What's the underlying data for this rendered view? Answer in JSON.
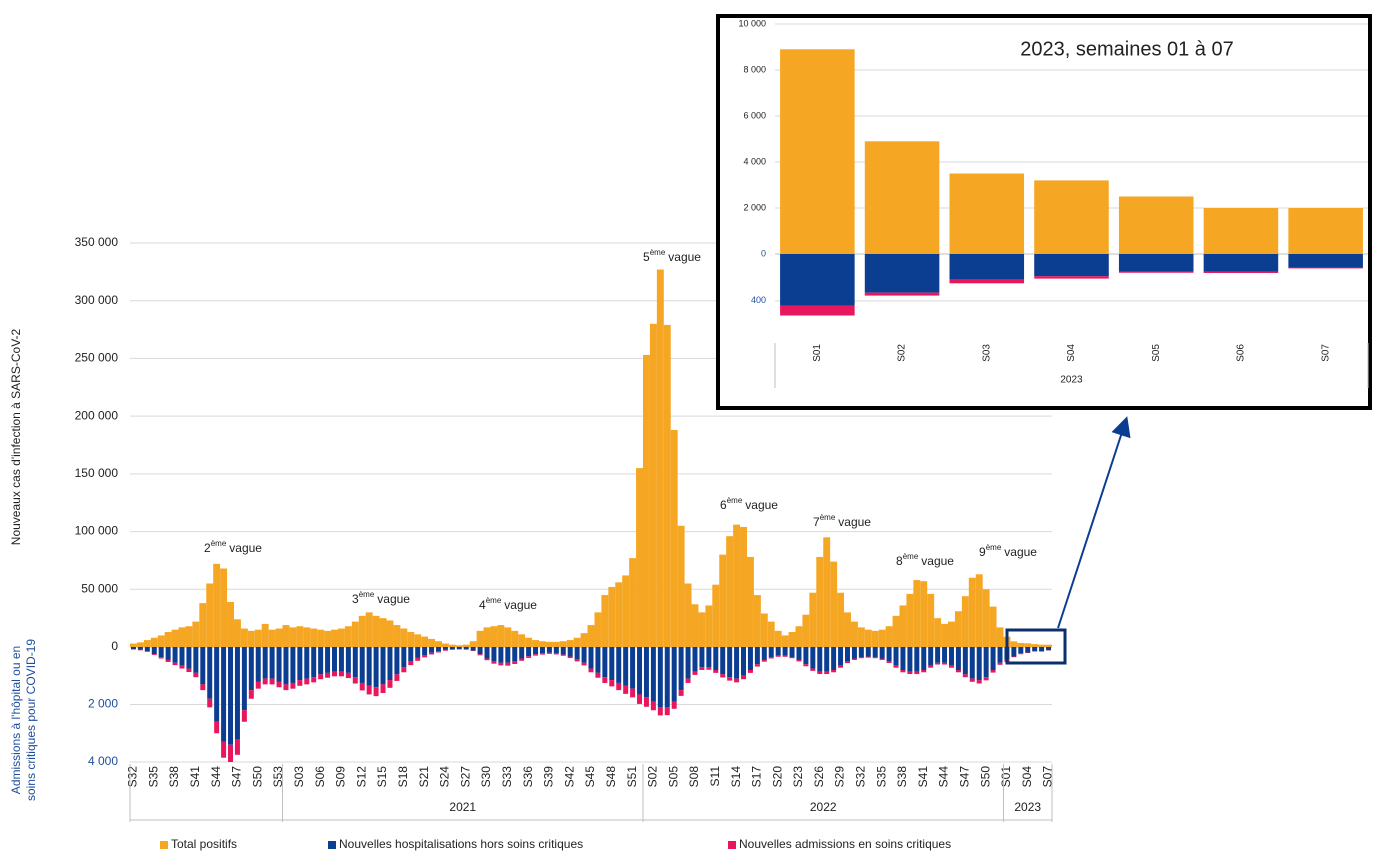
{
  "chart_data": [
    {
      "type": "bar",
      "ylabel": "Nouveaux cas d'infection à SARS-CoV-2",
      "y2label": [
        "Admissions à l'hôpital ou en",
        "soins critiques pour COVID-19"
      ],
      "categories": [
        "S32",
        null,
        null,
        "S35",
        null,
        null,
        "S38",
        null,
        null,
        "S41",
        null,
        null,
        "S44",
        null,
        null,
        "S47",
        null,
        null,
        "S50",
        null,
        null,
        "S53",
        null,
        null,
        "S03",
        null,
        null,
        "S06",
        null,
        null,
        "S09",
        null,
        null,
        "S12",
        null,
        null,
        "S15",
        null,
        null,
        "S18",
        null,
        null,
        "S21",
        null,
        null,
        "S24",
        null,
        null,
        "S27",
        null,
        null,
        "S30",
        null,
        null,
        "S33",
        null,
        null,
        "S36",
        null,
        null,
        "S39",
        null,
        null,
        "S42",
        null,
        null,
        "S45",
        null,
        null,
        "S48",
        null,
        null,
        "S51",
        null,
        null,
        "S02",
        null,
        null,
        "S05",
        null,
        null,
        "S08",
        null,
        null,
        "S11",
        null,
        null,
        "S14",
        null,
        null,
        "S17",
        null,
        null,
        "S20",
        null,
        null,
        "S23",
        null,
        null,
        "S26",
        null,
        null,
        "S29",
        null,
        null,
        "S32",
        null,
        null,
        "S35",
        null,
        null,
        "S38",
        null,
        null,
        "S41",
        null,
        null,
        "S44",
        null,
        null,
        "S47",
        null,
        null,
        "S50",
        null,
        null,
        "S01",
        null,
        null,
        "S04",
        null,
        null,
        "S07"
      ],
      "groups": [
        {
          "name": null,
          "size": 22
        },
        {
          "name": "2021",
          "size": 52
        },
        {
          "name": "2022",
          "size": 52
        },
        {
          "name": "2023",
          "size": 7
        }
      ],
      "series": [
        {
          "name": "Total positifs",
          "color": "#f5a623",
          "values": [
            3000,
            4000,
            6000,
            8000,
            10000,
            13000,
            15000,
            17000,
            18000,
            22000,
            38000,
            55000,
            72000,
            68000,
            39000,
            24000,
            16000,
            14000,
            15000,
            20000,
            15000,
            16000,
            19000,
            17000,
            18000,
            17000,
            16000,
            15000,
            14000,
            15000,
            16000,
            18000,
            22000,
            27000,
            30000,
            27000,
            25000,
            23000,
            19000,
            16000,
            13000,
            11000,
            9000,
            7000,
            5000,
            3000,
            2000,
            1500,
            2000,
            5000,
            14000,
            17000,
            18000,
            19000,
            17000,
            14000,
            11000,
            8000,
            6000,
            5000,
            4500,
            4500,
            5000,
            6000,
            8000,
            12000,
            19000,
            30000,
            45000,
            52000,
            56000,
            62000,
            77000,
            155000,
            253000,
            280000,
            327000,
            279000,
            188000,
            105000,
            55000,
            37000,
            30000,
            36000,
            54000,
            80000,
            96000,
            106000,
            104000,
            78000,
            45000,
            29000,
            22000,
            14000,
            10000,
            13000,
            18000,
            28000,
            47000,
            78000,
            95000,
            74000,
            47000,
            30000,
            22000,
            17000,
            15000,
            14000,
            15000,
            18000,
            27000,
            36000,
            46000,
            58000,
            57000,
            46000,
            25000,
            20000,
            22000,
            31000,
            44000,
            60000,
            63000,
            50000,
            35000,
            17000,
            8900,
            4900,
            3500,
            3200,
            2500,
            2000,
            2000
          ]
        },
        {
          "name": "Nouvelles hospitalisations hors soins critiques",
          "color": "#0b3d91",
          "axis": "y2",
          "values": [
            80,
            100,
            150,
            250,
            350,
            450,
            550,
            650,
            750,
            900,
            1300,
            1800,
            2600,
            3300,
            3400,
            3200,
            2200,
            1500,
            1200,
            1100,
            1100,
            1200,
            1300,
            1250,
            1150,
            1100,
            1050,
            950,
            900,
            850,
            850,
            900,
            1050,
            1250,
            1350,
            1400,
            1300,
            1150,
            950,
            700,
            500,
            380,
            280,
            200,
            150,
            100,
            80,
            70,
            80,
            120,
            250,
            400,
            500,
            550,
            550,
            500,
            400,
            320,
            250,
            220,
            200,
            220,
            260,
            330,
            430,
            550,
            750,
            900,
            1050,
            1150,
            1250,
            1350,
            1450,
            1650,
            1750,
            1900,
            2100,
            2100,
            1900,
            1500,
            1100,
            850,
            700,
            700,
            800,
            950,
            1050,
            1100,
            1000,
            800,
            600,
            450,
            350,
            300,
            300,
            350,
            450,
            600,
            750,
            850,
            850,
            800,
            650,
            500,
            400,
            350,
            330,
            350,
            400,
            500,
            650,
            800,
            850,
            850,
            800,
            650,
            550,
            550,
            650,
            800,
            950,
            1100,
            1150,
            1050,
            800,
            550,
            440,
            330,
            220,
            190,
            150,
            150,
            115
          ]
        },
        {
          "name": "Nouvelles admissions en soins critiques",
          "color": "#e8175d",
          "axis": "y2",
          "values": [
            10,
            15,
            20,
            30,
            50,
            70,
            80,
            100,
            120,
            150,
            200,
            300,
            400,
            550,
            600,
            550,
            400,
            300,
            250,
            200,
            200,
            200,
            200,
            200,
            200,
            200,
            180,
            170,
            170,
            170,
            170,
            180,
            220,
            260,
            300,
            310,
            300,
            270,
            230,
            180,
            130,
            100,
            80,
            60,
            40,
            30,
            20,
            15,
            15,
            20,
            40,
            60,
            80,
            90,
            100,
            90,
            80,
            60,
            50,
            45,
            40,
            40,
            45,
            55,
            70,
            90,
            130,
            170,
            200,
            220,
            250,
            280,
            300,
            330,
            330,
            300,
            280,
            270,
            250,
            200,
            150,
            120,
            100,
            90,
            100,
            110,
            120,
            130,
            120,
            100,
            80,
            60,
            50,
            40,
            40,
            40,
            50,
            70,
            80,
            90,
            90,
            80,
            70,
            60,
            50,
            40,
            40,
            40,
            50,
            55,
            70,
            80,
            90,
            90,
            80,
            70,
            60,
            60,
            70,
            80,
            100,
            110,
            120,
            110,
            90,
            70,
            85,
            25,
            30,
            20,
            10,
            12,
            8
          ]
        }
      ],
      "ylim": [
        0,
        350000
      ],
      "yticks": [
        0,
        {
          "value": 50000,
          "label": "50 000"
        },
        {
          "value": 100000,
          "label": "100 000"
        },
        {
          "value": 150000,
          "label": "150 000"
        },
        {
          "value": 200000,
          "label": "200 000"
        },
        {
          "value": 250000,
          "label": "250 000"
        },
        {
          "value": 300000,
          "label": "300 000"
        },
        {
          "value": 350000,
          "label": "350 000"
        }
      ],
      "y2lim": [
        0,
        4000
      ],
      "y2ticks": [
        {
          "value": 2000,
          "label": "2 000"
        },
        {
          "value": 4000,
          "label": "4 000"
        }
      ],
      "grid": true,
      "legend": "bottom",
      "annotations": [
        {
          "ordinal": "2",
          "suffix": "ème",
          "text": "vague"
        },
        {
          "ordinal": "3",
          "suffix": "ème",
          "text": "vague"
        },
        {
          "ordinal": "4",
          "suffix": "ème",
          "text": "vague"
        },
        {
          "ordinal": "5",
          "suffix": "ème",
          "text": "vague"
        },
        {
          "ordinal": "6",
          "suffix": "ème",
          "text": "vague"
        },
        {
          "ordinal": "7",
          "suffix": "ème",
          "text": "vague"
        },
        {
          "ordinal": "8",
          "suffix": "ème",
          "text": "vague"
        },
        {
          "ordinal": "9",
          "suffix": "ème",
          "text": "vague"
        }
      ]
    },
    {
      "type": "bar",
      "title": "2023, semaines 01 à 07",
      "categories": [
        "S01",
        "S02",
        "S03",
        "S04",
        "S05",
        "S06",
        "S07"
      ],
      "groups": [
        {
          "name": "2023",
          "size": 7
        }
      ],
      "series": [
        {
          "color": "#f5a623",
          "values": [
            8900,
            4900,
            3500,
            3200,
            2500,
            2000,
            2000
          ]
        },
        {
          "color": "#0b3d91",
          "axis": "y2",
          "values": [
            440,
            330,
            220,
            190,
            150,
            150,
            115
          ]
        },
        {
          "color": "#e8175d",
          "axis": "y2",
          "values": [
            85,
            25,
            30,
            20,
            10,
            12,
            8
          ]
        }
      ],
      "ylim": [
        0,
        10000
      ],
      "yticks": [
        {
          "value": 2000,
          "label": "2 000"
        },
        {
          "value": 4000,
          "label": "4 000"
        },
        {
          "value": 6000,
          "label": "6 000"
        },
        {
          "value": 8000,
          "label": "8 000"
        },
        {
          "value": 10000,
          "label": "10 000"
        }
      ],
      "y2lim": [
        0,
        700
      ],
      "y2ticks": [
        0,
        400
      ],
      "grid": true
    }
  ]
}
